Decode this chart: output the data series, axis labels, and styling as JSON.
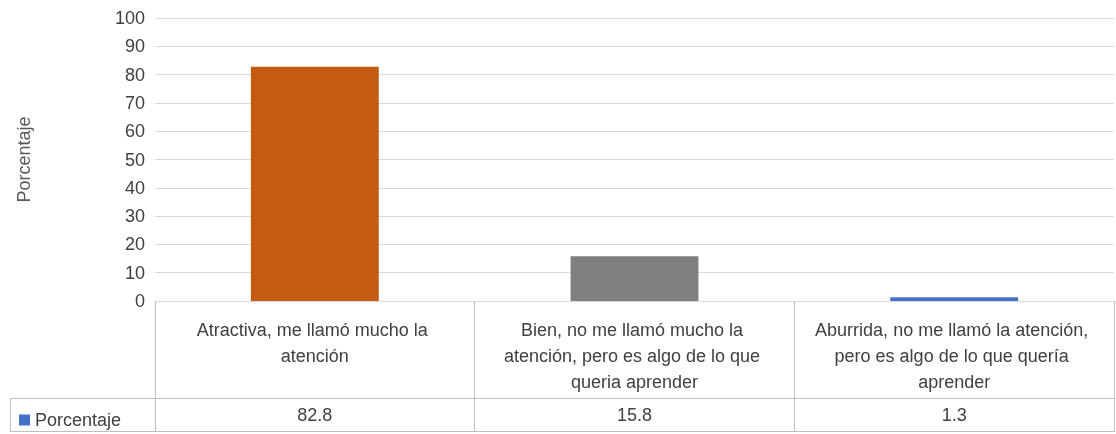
{
  "chart_data": {
    "type": "bar",
    "ylabel": "Porcentaje",
    "categories": [
      "Atractiva, me llamó mucho la atención",
      "Bien, no me llamó mucho la atención, pero es algo de lo que queria aprender",
      "Aburrida, no me llamó la atención, pero es algo de lo que quería aprender"
    ],
    "series": [
      {
        "name": "Porcentaje",
        "color": "#4472c4",
        "colors": [
          "#c55a11",
          "#7f7f7f",
          "#4472c4"
        ],
        "values": [
          82.8,
          15.8,
          1.3
        ]
      }
    ],
    "ylim": [
      0,
      100
    ],
    "yticks": [
      0,
      10,
      20,
      30,
      40,
      50,
      60,
      70,
      80,
      90,
      100
    ],
    "grid": "y",
    "legend": "bottom left",
    "data_labels": true
  }
}
